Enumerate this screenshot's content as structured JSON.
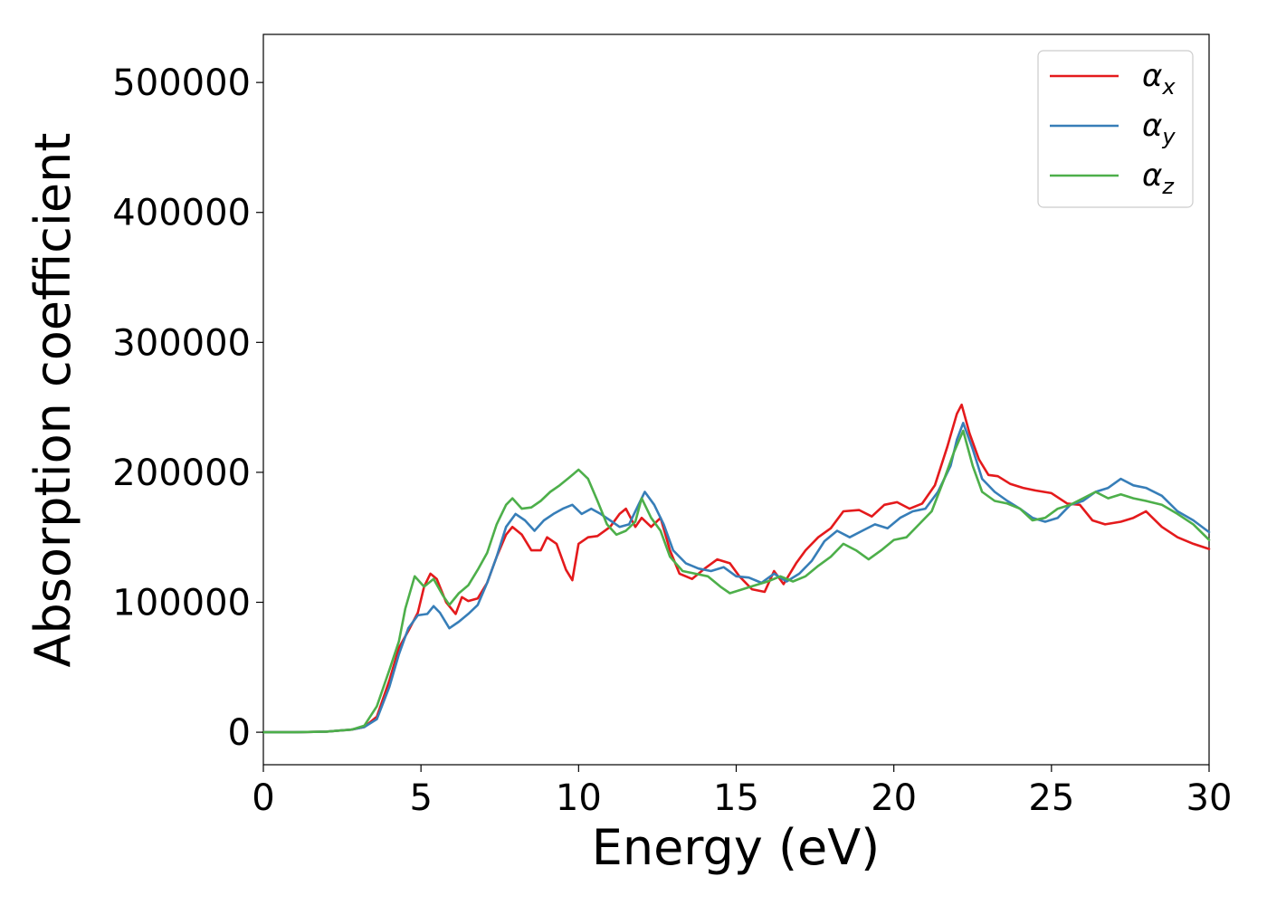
{
  "chart_data": {
    "type": "line",
    "title": "",
    "xlabel": "Energy (eV)",
    "ylabel": "Absorption coefficient",
    "xlim": [
      0,
      30
    ],
    "ylim": [
      -25000,
      537000
    ],
    "xticks": [
      0,
      5,
      10,
      15,
      20,
      25,
      30
    ],
    "yticks": [
      0,
      100000,
      200000,
      300000,
      400000,
      500000
    ],
    "grid": false,
    "legend_position": "top-right",
    "series": [
      {
        "name": "α",
        "subscript": "x",
        "color": "#e41a1c",
        "points": [
          [
            0,
            0
          ],
          [
            1,
            0
          ],
          [
            2,
            500
          ],
          [
            2.8,
            2000
          ],
          [
            3.2,
            4000
          ],
          [
            3.6,
            12000
          ],
          [
            4,
            40000
          ],
          [
            4.3,
            65000
          ],
          [
            4.6,
            78000
          ],
          [
            4.9,
            92000
          ],
          [
            5.1,
            112000
          ],
          [
            5.3,
            122000
          ],
          [
            5.5,
            118000
          ],
          [
            5.8,
            100000
          ],
          [
            6.1,
            91000
          ],
          [
            6.3,
            104000
          ],
          [
            6.5,
            101000
          ],
          [
            6.8,
            103000
          ],
          [
            7.1,
            115000
          ],
          [
            7.4,
            135000
          ],
          [
            7.7,
            152000
          ],
          [
            7.9,
            158000
          ],
          [
            8.2,
            152000
          ],
          [
            8.5,
            140000
          ],
          [
            8.8,
            140000
          ],
          [
            9.0,
            150000
          ],
          [
            9.3,
            145000
          ],
          [
            9.6,
            125000
          ],
          [
            9.8,
            117000
          ],
          [
            10.0,
            145000
          ],
          [
            10.3,
            150000
          ],
          [
            10.6,
            151000
          ],
          [
            11.0,
            158000
          ],
          [
            11.3,
            168000
          ],
          [
            11.5,
            172000
          ],
          [
            11.8,
            158000
          ],
          [
            12.0,
            165000
          ],
          [
            12.3,
            158000
          ],
          [
            12.6,
            165000
          ],
          [
            12.9,
            140000
          ],
          [
            13.2,
            122000
          ],
          [
            13.6,
            118000
          ],
          [
            14.0,
            126000
          ],
          [
            14.4,
            133000
          ],
          [
            14.8,
            130000
          ],
          [
            15.1,
            120000
          ],
          [
            15.5,
            110000
          ],
          [
            15.9,
            108000
          ],
          [
            16.2,
            124000
          ],
          [
            16.5,
            114000
          ],
          [
            16.9,
            130000
          ],
          [
            17.2,
            140000
          ],
          [
            17.6,
            150000
          ],
          [
            18.0,
            157000
          ],
          [
            18.4,
            170000
          ],
          [
            18.9,
            171000
          ],
          [
            19.3,
            166000
          ],
          [
            19.7,
            175000
          ],
          [
            20.1,
            177000
          ],
          [
            20.5,
            172000
          ],
          [
            20.9,
            176000
          ],
          [
            21.3,
            190000
          ],
          [
            21.7,
            220000
          ],
          [
            22.0,
            245000
          ],
          [
            22.15,
            252000
          ],
          [
            22.4,
            230000
          ],
          [
            22.7,
            210000
          ],
          [
            23.0,
            198000
          ],
          [
            23.3,
            197000
          ],
          [
            23.7,
            191000
          ],
          [
            24.1,
            188000
          ],
          [
            24.5,
            186000
          ],
          [
            25.0,
            184000
          ],
          [
            25.5,
            176000
          ],
          [
            25.9,
            175000
          ],
          [
            26.3,
            163000
          ],
          [
            26.7,
            160000
          ],
          [
            27.2,
            162000
          ],
          [
            27.6,
            165000
          ],
          [
            28.0,
            170000
          ],
          [
            28.5,
            158000
          ],
          [
            29.0,
            150000
          ],
          [
            29.5,
            145000
          ],
          [
            30,
            141000
          ]
        ]
      },
      {
        "name": "α",
        "subscript": "y",
        "color": "#377eb8",
        "points": [
          [
            0,
            0
          ],
          [
            1,
            0
          ],
          [
            2,
            500
          ],
          [
            2.8,
            2000
          ],
          [
            3.2,
            4000
          ],
          [
            3.6,
            10000
          ],
          [
            4,
            35000
          ],
          [
            4.3,
            60000
          ],
          [
            4.6,
            80000
          ],
          [
            4.9,
            90000
          ],
          [
            5.2,
            91000
          ],
          [
            5.4,
            97000
          ],
          [
            5.6,
            92000
          ],
          [
            5.9,
            80000
          ],
          [
            6.2,
            85000
          ],
          [
            6.5,
            91000
          ],
          [
            6.8,
            98000
          ],
          [
            7.1,
            115000
          ],
          [
            7.4,
            135000
          ],
          [
            7.7,
            158000
          ],
          [
            8.0,
            168000
          ],
          [
            8.3,
            163000
          ],
          [
            8.6,
            155000
          ],
          [
            8.9,
            163000
          ],
          [
            9.2,
            168000
          ],
          [
            9.5,
            172000
          ],
          [
            9.8,
            175000
          ],
          [
            10.1,
            168000
          ],
          [
            10.4,
            172000
          ],
          [
            10.7,
            168000
          ],
          [
            11.0,
            163000
          ],
          [
            11.3,
            158000
          ],
          [
            11.6,
            160000
          ],
          [
            11.9,
            175000
          ],
          [
            12.1,
            185000
          ],
          [
            12.4,
            175000
          ],
          [
            12.7,
            160000
          ],
          [
            13.0,
            140000
          ],
          [
            13.4,
            130000
          ],
          [
            13.8,
            126000
          ],
          [
            14.2,
            124000
          ],
          [
            14.6,
            127000
          ],
          [
            15.0,
            120000
          ],
          [
            15.4,
            119000
          ],
          [
            15.8,
            115000
          ],
          [
            16.2,
            122000
          ],
          [
            16.6,
            116000
          ],
          [
            17.0,
            122000
          ],
          [
            17.4,
            132000
          ],
          [
            17.8,
            147000
          ],
          [
            18.2,
            155000
          ],
          [
            18.6,
            150000
          ],
          [
            19.0,
            155000
          ],
          [
            19.4,
            160000
          ],
          [
            19.8,
            157000
          ],
          [
            20.2,
            165000
          ],
          [
            20.6,
            170000
          ],
          [
            21.0,
            172000
          ],
          [
            21.4,
            185000
          ],
          [
            21.8,
            205000
          ],
          [
            22.0,
            225000
          ],
          [
            22.2,
            238000
          ],
          [
            22.5,
            218000
          ],
          [
            22.8,
            195000
          ],
          [
            23.2,
            185000
          ],
          [
            23.6,
            178000
          ],
          [
            24.0,
            172000
          ],
          [
            24.4,
            165000
          ],
          [
            24.8,
            162000
          ],
          [
            25.2,
            165000
          ],
          [
            25.6,
            175000
          ],
          [
            26.0,
            178000
          ],
          [
            26.4,
            185000
          ],
          [
            26.8,
            188000
          ],
          [
            27.2,
            195000
          ],
          [
            27.6,
            190000
          ],
          [
            28.0,
            188000
          ],
          [
            28.5,
            182000
          ],
          [
            29.0,
            170000
          ],
          [
            29.5,
            163000
          ],
          [
            30,
            154000
          ]
        ]
      },
      {
        "name": "α",
        "subscript": "z",
        "color": "#4daf4a",
        "points": [
          [
            0,
            0
          ],
          [
            1,
            0
          ],
          [
            2,
            500
          ],
          [
            2.8,
            2000
          ],
          [
            3.2,
            5000
          ],
          [
            3.6,
            20000
          ],
          [
            4,
            48000
          ],
          [
            4.3,
            70000
          ],
          [
            4.5,
            95000
          ],
          [
            4.8,
            120000
          ],
          [
            5.1,
            112000
          ],
          [
            5.4,
            118000
          ],
          [
            5.7,
            105000
          ],
          [
            5.9,
            98000
          ],
          [
            6.2,
            107000
          ],
          [
            6.5,
            113000
          ],
          [
            6.8,
            125000
          ],
          [
            7.1,
            138000
          ],
          [
            7.4,
            160000
          ],
          [
            7.7,
            175000
          ],
          [
            7.9,
            180000
          ],
          [
            8.2,
            172000
          ],
          [
            8.5,
            173000
          ],
          [
            8.8,
            178000
          ],
          [
            9.1,
            185000
          ],
          [
            9.4,
            190000
          ],
          [
            9.7,
            196000
          ],
          [
            10.0,
            202000
          ],
          [
            10.3,
            195000
          ],
          [
            10.6,
            178000
          ],
          [
            10.9,
            160000
          ],
          [
            11.2,
            152000
          ],
          [
            11.5,
            155000
          ],
          [
            11.8,
            162000
          ],
          [
            12.0,
            180000
          ],
          [
            12.3,
            165000
          ],
          [
            12.6,
            155000
          ],
          [
            12.9,
            135000
          ],
          [
            13.3,
            124000
          ],
          [
            13.7,
            122000
          ],
          [
            14.1,
            120000
          ],
          [
            14.5,
            112000
          ],
          [
            14.8,
            107000
          ],
          [
            15.2,
            110000
          ],
          [
            15.6,
            113000
          ],
          [
            16.0,
            116000
          ],
          [
            16.4,
            120000
          ],
          [
            16.8,
            116000
          ],
          [
            17.2,
            120000
          ],
          [
            17.6,
            128000
          ],
          [
            18.0,
            135000
          ],
          [
            18.4,
            145000
          ],
          [
            18.8,
            140000
          ],
          [
            19.2,
            133000
          ],
          [
            19.6,
            140000
          ],
          [
            20.0,
            148000
          ],
          [
            20.4,
            150000
          ],
          [
            20.8,
            160000
          ],
          [
            21.2,
            170000
          ],
          [
            21.6,
            195000
          ],
          [
            21.9,
            215000
          ],
          [
            22.2,
            232000
          ],
          [
            22.5,
            205000
          ],
          [
            22.8,
            185000
          ],
          [
            23.2,
            178000
          ],
          [
            23.6,
            176000
          ],
          [
            24.0,
            172000
          ],
          [
            24.4,
            163000
          ],
          [
            24.8,
            165000
          ],
          [
            25.2,
            172000
          ],
          [
            25.6,
            175000
          ],
          [
            26.0,
            180000
          ],
          [
            26.4,
            185000
          ],
          [
            26.8,
            180000
          ],
          [
            27.2,
            183000
          ],
          [
            27.6,
            180000
          ],
          [
            28.0,
            178000
          ],
          [
            28.5,
            175000
          ],
          [
            29.0,
            168000
          ],
          [
            29.5,
            160000
          ],
          [
            30,
            148000
          ]
        ]
      }
    ]
  }
}
